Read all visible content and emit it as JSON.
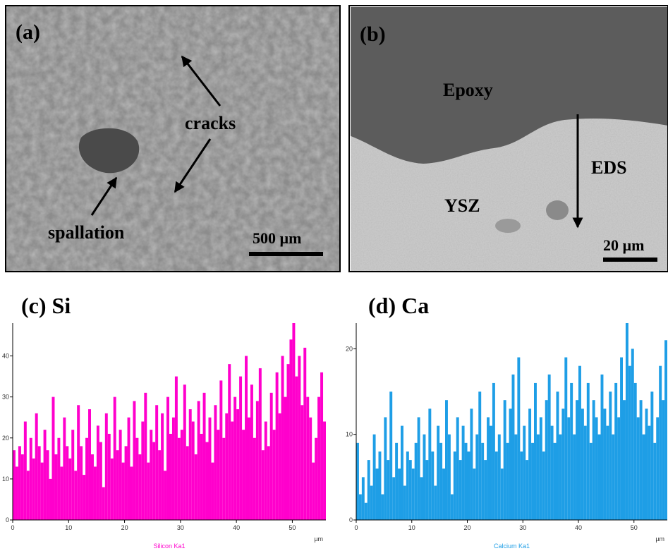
{
  "panels": [
    {
      "label": "(a)",
      "annotations": [
        "cracks",
        "spallation"
      ],
      "scale_bar": "500 µm"
    },
    {
      "label": "(b)",
      "annotations": [
        "Epoxy",
        "EDS",
        "YSZ"
      ],
      "scale_bar": "20 µm"
    }
  ],
  "chart_data": [
    {
      "type": "bar",
      "title": "(c) Si",
      "x_label": "µm",
      "xlim": [
        0,
        56
      ],
      "ylim": [
        0,
        48
      ],
      "xticks": [
        0,
        10,
        20,
        30,
        40,
        50
      ],
      "yticks": [
        0,
        10,
        20,
        30,
        40
      ],
      "bar_width": 0.5,
      "x": [
        0,
        0.5,
        1,
        1.5,
        2,
        2.5,
        3,
        3.5,
        4,
        4.5,
        5,
        5.5,
        6,
        6.5,
        7,
        7.5,
        8,
        8.5,
        9,
        9.5,
        10,
        10.5,
        11,
        11.5,
        12,
        12.5,
        13,
        13.5,
        14,
        14.5,
        15,
        15.5,
        16,
        16.5,
        17,
        17.5,
        18,
        18.5,
        19,
        19.5,
        20,
        20.5,
        21,
        21.5,
        22,
        22.5,
        23,
        23.5,
        24,
        24.5,
        25,
        25.5,
        26,
        26.5,
        27,
        27.5,
        28,
        28.5,
        29,
        29.5,
        30,
        30.5,
        31,
        31.5,
        32,
        32.5,
        33,
        33.5,
        34,
        34.5,
        35,
        35.5,
        36,
        36.5,
        37,
        37.5,
        38,
        38.5,
        39,
        39.5,
        40,
        40.5,
        41,
        41.5,
        42,
        42.5,
        43,
        43.5,
        44,
        44.5,
        45,
        45.5,
        46,
        46.5,
        47,
        47.5,
        48,
        48.5,
        49,
        49.5,
        50,
        50.5,
        51,
        51.5,
        52,
        52.5,
        53,
        53.5,
        54,
        54.5,
        55,
        55.5
      ],
      "series": [
        {
          "name": "Silicon Ka1",
          "color": "#ff00cc",
          "values": [
            17,
            13,
            18,
            16,
            24,
            12,
            20,
            15,
            26,
            18,
            14,
            22,
            17,
            10,
            30,
            16,
            20,
            13,
            25,
            18,
            15,
            22,
            12,
            28,
            18,
            11,
            20,
            27,
            16,
            13,
            23,
            19,
            8,
            26,
            21,
            15,
            30,
            17,
            22,
            14,
            18,
            25,
            13,
            29,
            20,
            16,
            24,
            31,
            14,
            22,
            19,
            28,
            17,
            26,
            12,
            30,
            21,
            25,
            35,
            20,
            22,
            33,
            18,
            27,
            24,
            16,
            29,
            21,
            31,
            19,
            25,
            14,
            28,
            22,
            34,
            20,
            26,
            38,
            24,
            30,
            27,
            35,
            22,
            40,
            25,
            33,
            20,
            29,
            37,
            17,
            24,
            18,
            31,
            22,
            36,
            26,
            40,
            30,
            38,
            44,
            48,
            35,
            40,
            28,
            42,
            30,
            25,
            14,
            20,
            30,
            36,
            24
          ]
        }
      ]
    },
    {
      "type": "bar",
      "title": "(d) Ca",
      "x_label": "µm",
      "xlim": [
        0,
        56
      ],
      "ylim": [
        0,
        23
      ],
      "xticks": [
        0,
        10,
        20,
        30,
        40,
        50
      ],
      "yticks": [
        0,
        10,
        20
      ],
      "bar_width": 0.5,
      "x": [
        0,
        0.5,
        1,
        1.5,
        2,
        2.5,
        3,
        3.5,
        4,
        4.5,
        5,
        5.5,
        6,
        6.5,
        7,
        7.5,
        8,
        8.5,
        9,
        9.5,
        10,
        10.5,
        11,
        11.5,
        12,
        12.5,
        13,
        13.5,
        14,
        14.5,
        15,
        15.5,
        16,
        16.5,
        17,
        17.5,
        18,
        18.5,
        19,
        19.5,
        20,
        20.5,
        21,
        21.5,
        22,
        22.5,
        23,
        23.5,
        24,
        24.5,
        25,
        25.5,
        26,
        26.5,
        27,
        27.5,
        28,
        28.5,
        29,
        29.5,
        30,
        30.5,
        31,
        31.5,
        32,
        32.5,
        33,
        33.5,
        34,
        34.5,
        35,
        35.5,
        36,
        36.5,
        37,
        37.5,
        38,
        38.5,
        39,
        39.5,
        40,
        40.5,
        41,
        41.5,
        42,
        42.5,
        43,
        43.5,
        44,
        44.5,
        45,
        45.5,
        46,
        46.5,
        47,
        47.5,
        48,
        48.5,
        49,
        49.5,
        50,
        50.5,
        51,
        51.5,
        52,
        52.5,
        53,
        53.5,
        54,
        54.5,
        55,
        55.5
      ],
      "series": [
        {
          "name": "Calcium Ka1",
          "color": "#1e9ee6",
          "values": [
            9,
            3,
            5,
            2,
            7,
            4,
            10,
            6,
            8,
            3,
            12,
            7,
            15,
            5,
            9,
            6,
            11,
            4,
            8,
            7,
            6,
            9,
            12,
            5,
            10,
            7,
            13,
            8,
            4,
            11,
            9,
            6,
            14,
            10,
            3,
            8,
            12,
            7,
            11,
            9,
            8,
            13,
            6,
            10,
            15,
            9,
            7,
            12,
            11,
            16,
            8,
            10,
            6,
            14,
            9,
            13,
            17,
            10,
            19,
            8,
            11,
            7,
            13,
            9,
            16,
            10,
            12,
            8,
            14,
            17,
            11,
            9,
            15,
            10,
            13,
            19,
            12,
            16,
            10,
            14,
            18,
            13,
            11,
            16,
            9,
            14,
            12,
            10,
            17,
            13,
            11,
            15,
            10,
            16,
            12,
            19,
            14,
            23,
            18,
            20,
            16,
            12,
            14,
            10,
            13,
            11,
            15,
            9,
            12,
            18,
            14,
            21
          ]
        }
      ]
    }
  ]
}
